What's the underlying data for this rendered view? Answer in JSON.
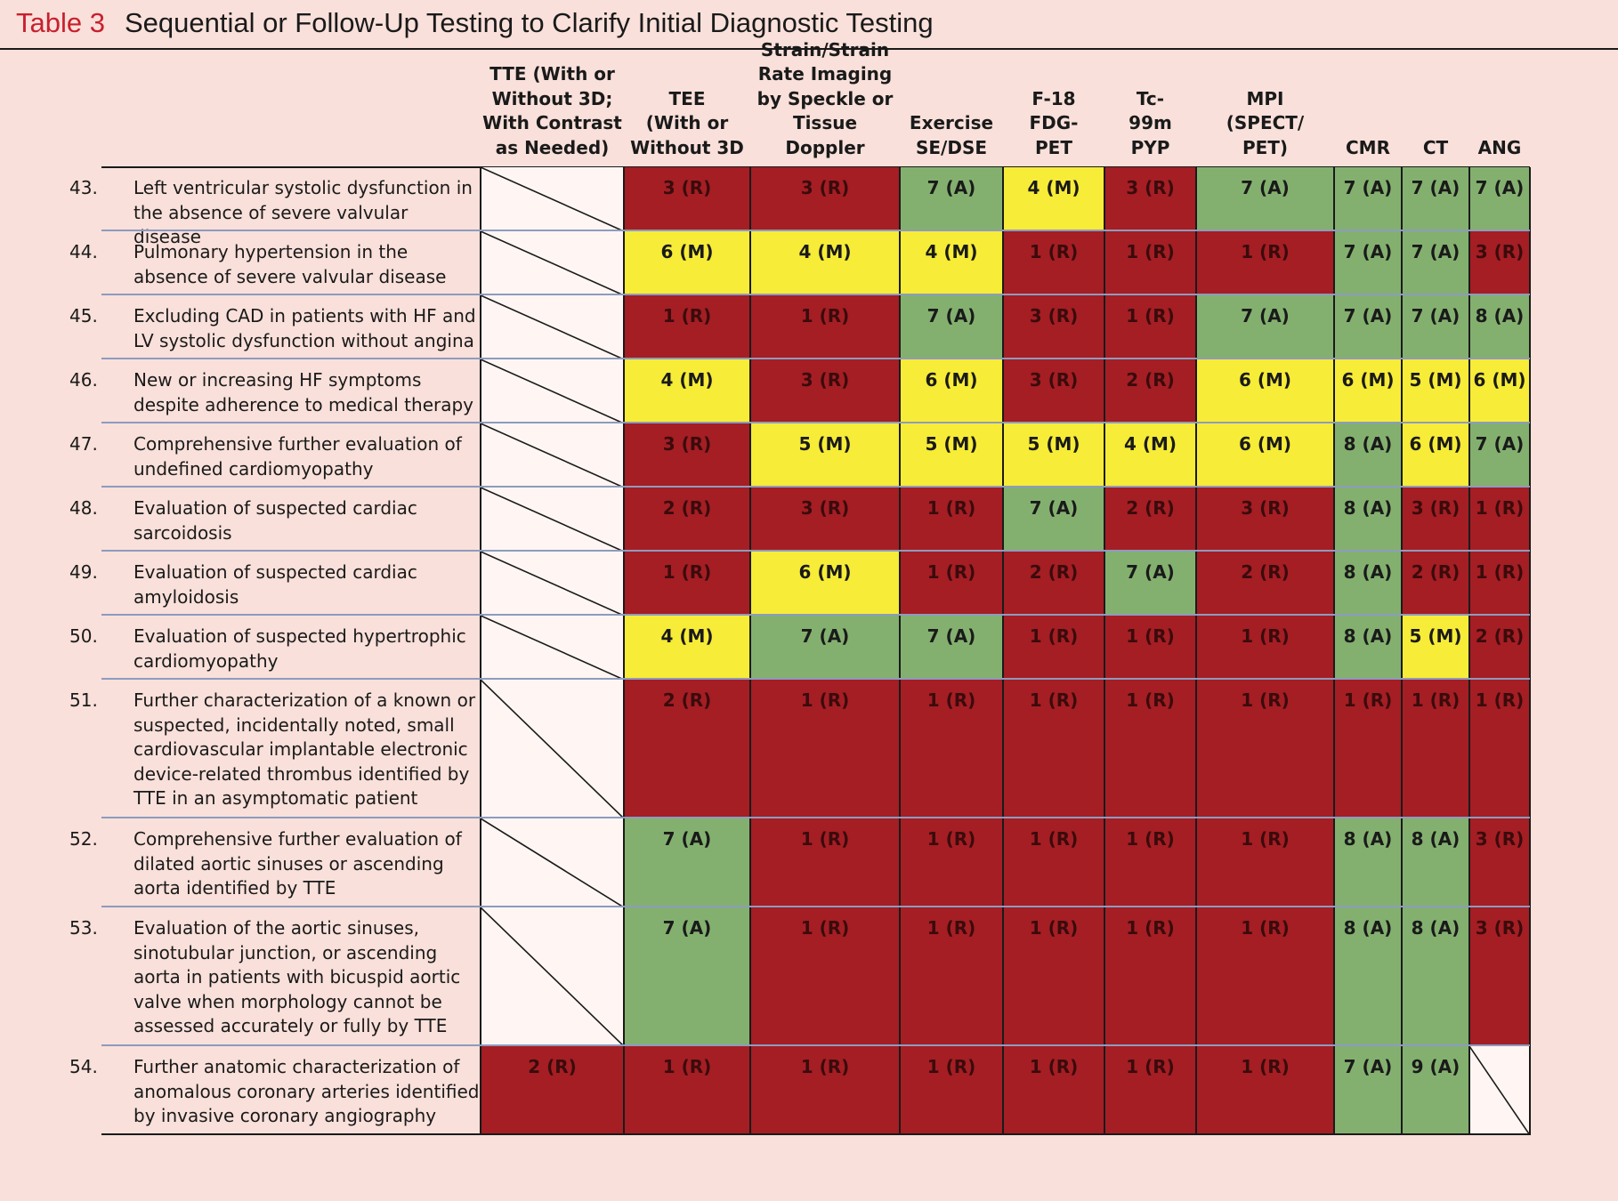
{
  "title": {
    "number": "Table 3",
    "text": "Sequential or Follow-Up Testing to Clarify Initial Diagnostic Testing"
  },
  "columns": [
    "TTE (With or\nWithout 3D;\nWith Contrast\nas Needed)",
    "TEE\n(With or\nWithout 3D",
    "Strain/Strain\nRate Imaging\nby Speckle or\nTissue Doppler",
    "Exercise\nSE/DSE",
    "F-18\nFDG-\nPET",
    "Tc-\n99m\nPYP",
    "MPI\n(SPECT/\nPET)",
    "CMR",
    "CT",
    "ANG"
  ],
  "rows": [
    {
      "num": "43.",
      "label": "Left ventricular systolic dysfunction in the absence of severe valvular disease",
      "cells": [
        {
          "v": "",
          "c": "blank"
        },
        {
          "v": "3 (R)",
          "c": "R"
        },
        {
          "v": "3 (R)",
          "c": "R"
        },
        {
          "v": "7 (A)",
          "c": "A"
        },
        {
          "v": "4 (M)",
          "c": "M"
        },
        {
          "v": "3 (R)",
          "c": "R"
        },
        {
          "v": "7 (A)",
          "c": "A"
        },
        {
          "v": "7 (A)",
          "c": "A"
        },
        {
          "v": "7 (A)",
          "c": "A"
        },
        {
          "v": "7 (A)",
          "c": "A"
        }
      ]
    },
    {
      "num": "44.",
      "label": "Pulmonary hypertension in the absence of severe valvular disease",
      "cells": [
        {
          "v": "",
          "c": "blank"
        },
        {
          "v": "6 (M)",
          "c": "M"
        },
        {
          "v": "4 (M)",
          "c": "M"
        },
        {
          "v": "4 (M)",
          "c": "M"
        },
        {
          "v": "1 (R)",
          "c": "R"
        },
        {
          "v": "1 (R)",
          "c": "R"
        },
        {
          "v": "1 (R)",
          "c": "R"
        },
        {
          "v": "7 (A)",
          "c": "A"
        },
        {
          "v": "7 (A)",
          "c": "A"
        },
        {
          "v": "3 (R)",
          "c": "R"
        }
      ]
    },
    {
      "num": "45.",
      "label": "Excluding CAD in patients with HF and LV systolic dysfunction without angina",
      "cells": [
        {
          "v": "",
          "c": "blank"
        },
        {
          "v": "1 (R)",
          "c": "R"
        },
        {
          "v": "1 (R)",
          "c": "R"
        },
        {
          "v": "7 (A)",
          "c": "A"
        },
        {
          "v": "3 (R)",
          "c": "R"
        },
        {
          "v": "1 (R)",
          "c": "R"
        },
        {
          "v": "7 (A)",
          "c": "A"
        },
        {
          "v": "7 (A)",
          "c": "A"
        },
        {
          "v": "7 (A)",
          "c": "A"
        },
        {
          "v": "8 (A)",
          "c": "A"
        }
      ]
    },
    {
      "num": "46.",
      "label": "New or increasing HF symptoms despite adherence to medical therapy",
      "cells": [
        {
          "v": "",
          "c": "blank"
        },
        {
          "v": "4 (M)",
          "c": "M"
        },
        {
          "v": "3 (R)",
          "c": "R"
        },
        {
          "v": "6 (M)",
          "c": "M"
        },
        {
          "v": "3 (R)",
          "c": "R"
        },
        {
          "v": "2 (R)",
          "c": "R"
        },
        {
          "v": "6 (M)",
          "c": "M"
        },
        {
          "v": "6 (M)",
          "c": "M"
        },
        {
          "v": "5 (M)",
          "c": "M"
        },
        {
          "v": "6 (M)",
          "c": "M"
        }
      ]
    },
    {
      "num": "47.",
      "label": "Comprehensive further evaluation of undefined cardiomyopathy",
      "cells": [
        {
          "v": "",
          "c": "blank"
        },
        {
          "v": "3 (R)",
          "c": "R"
        },
        {
          "v": "5 (M)",
          "c": "M"
        },
        {
          "v": "5 (M)",
          "c": "M"
        },
        {
          "v": "5 (M)",
          "c": "M"
        },
        {
          "v": "4 (M)",
          "c": "M"
        },
        {
          "v": "6 (M)",
          "c": "M"
        },
        {
          "v": "8 (A)",
          "c": "A"
        },
        {
          "v": "6 (M)",
          "c": "M"
        },
        {
          "v": "7 (A)",
          "c": "A"
        }
      ]
    },
    {
      "num": "48.",
      "label": "Evaluation of suspected cardiac sarcoidosis",
      "cells": [
        {
          "v": "",
          "c": "blank"
        },
        {
          "v": "2 (R)",
          "c": "R"
        },
        {
          "v": "3 (R)",
          "c": "R"
        },
        {
          "v": "1 (R)",
          "c": "R"
        },
        {
          "v": "7 (A)",
          "c": "A"
        },
        {
          "v": "2 (R)",
          "c": "R"
        },
        {
          "v": "3 (R)",
          "c": "R"
        },
        {
          "v": "8 (A)",
          "c": "A"
        },
        {
          "v": "3 (R)",
          "c": "R"
        },
        {
          "v": "1 (R)",
          "c": "R"
        }
      ]
    },
    {
      "num": "49.",
      "label": "Evaluation of suspected cardiac amyloidosis",
      "cells": [
        {
          "v": "",
          "c": "blank"
        },
        {
          "v": "1 (R)",
          "c": "R"
        },
        {
          "v": "6 (M)",
          "c": "M"
        },
        {
          "v": "1 (R)",
          "c": "R"
        },
        {
          "v": "2 (R)",
          "c": "R"
        },
        {
          "v": "7 (A)",
          "c": "A"
        },
        {
          "v": "2 (R)",
          "c": "R"
        },
        {
          "v": "8 (A)",
          "c": "A"
        },
        {
          "v": "2 (R)",
          "c": "R"
        },
        {
          "v": "1 (R)",
          "c": "R"
        }
      ]
    },
    {
      "num": "50.",
      "label": "Evaluation of suspected hypertrophic cardiomyopathy",
      "cells": [
        {
          "v": "",
          "c": "blank"
        },
        {
          "v": "4 (M)",
          "c": "M"
        },
        {
          "v": "7 (A)",
          "c": "A"
        },
        {
          "v": "7 (A)",
          "c": "A"
        },
        {
          "v": "1 (R)",
          "c": "R"
        },
        {
          "v": "1 (R)",
          "c": "R"
        },
        {
          "v": "1 (R)",
          "c": "R"
        },
        {
          "v": "8 (A)",
          "c": "A"
        },
        {
          "v": "5 (M)",
          "c": "M"
        },
        {
          "v": "2 (R)",
          "c": "R"
        }
      ]
    },
    {
      "num": "51.",
      "label": "Further characterization of a known or suspected, incidentally noted, small cardiovascular implantable electronic device-related thrombus identified by TTE in an asymptomatic patient",
      "cells": [
        {
          "v": "",
          "c": "blank"
        },
        {
          "v": "2 (R)",
          "c": "R"
        },
        {
          "v": "1 (R)",
          "c": "R"
        },
        {
          "v": "1 (R)",
          "c": "R"
        },
        {
          "v": "1 (R)",
          "c": "R"
        },
        {
          "v": "1 (R)",
          "c": "R"
        },
        {
          "v": "1 (R)",
          "c": "R"
        },
        {
          "v": "1 (R)",
          "c": "R"
        },
        {
          "v": "1 (R)",
          "c": "R"
        },
        {
          "v": "1 (R)",
          "c": "R"
        }
      ]
    },
    {
      "num": "52.",
      "label": "Comprehensive further evaluation of dilated aortic sinuses or ascending aorta identified by TTE",
      "cells": [
        {
          "v": "",
          "c": "blank"
        },
        {
          "v": "7 (A)",
          "c": "A"
        },
        {
          "v": "1 (R)",
          "c": "R"
        },
        {
          "v": "1 (R)",
          "c": "R"
        },
        {
          "v": "1 (R)",
          "c": "R"
        },
        {
          "v": "1 (R)",
          "c": "R"
        },
        {
          "v": "1 (R)",
          "c": "R"
        },
        {
          "v": "8 (A)",
          "c": "A"
        },
        {
          "v": "8 (A)",
          "c": "A"
        },
        {
          "v": "3 (R)",
          "c": "R"
        }
      ]
    },
    {
      "num": "53.",
      "label": "Evaluation of the aortic sinuses, sinotubular junction, or ascending aorta in patients with bicuspid aortic valve when morphology cannot be assessed accurately or fully by TTE",
      "cells": [
        {
          "v": "",
          "c": "blank"
        },
        {
          "v": "7 (A)",
          "c": "A"
        },
        {
          "v": "1 (R)",
          "c": "R"
        },
        {
          "v": "1 (R)",
          "c": "R"
        },
        {
          "v": "1 (R)",
          "c": "R"
        },
        {
          "v": "1 (R)",
          "c": "R"
        },
        {
          "v": "1 (R)",
          "c": "R"
        },
        {
          "v": "8 (A)",
          "c": "A"
        },
        {
          "v": "8 (A)",
          "c": "A"
        },
        {
          "v": "3 (R)",
          "c": "R"
        }
      ]
    },
    {
      "num": "54.",
      "label": "Further anatomic characterization of anomalous coronary arteries identified by invasive coronary angiography",
      "cells": [
        {
          "v": "2 (R)",
          "c": "R"
        },
        {
          "v": "1 (R)",
          "c": "R"
        },
        {
          "v": "1 (R)",
          "c": "R"
        },
        {
          "v": "1 (R)",
          "c": "R"
        },
        {
          "v": "1 (R)",
          "c": "R"
        },
        {
          "v": "1 (R)",
          "c": "R"
        },
        {
          "v": "1 (R)",
          "c": "R"
        },
        {
          "v": "7 (A)",
          "c": "A"
        },
        {
          "v": "9 (A)",
          "c": "A"
        },
        {
          "v": "",
          "c": "blank"
        }
      ]
    }
  ]
}
